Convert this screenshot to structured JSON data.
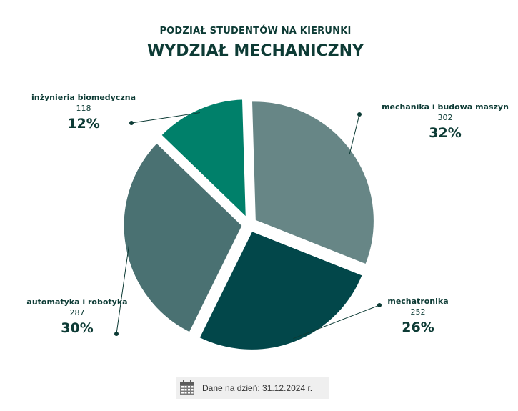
{
  "title": {
    "line1": "PODZIAŁ STUDENTÓW NA KIERUNKI",
    "line2": "WYDZIAŁ MECHANICZNY"
  },
  "footer": {
    "text": "Dane na dzień: 31.12.2024 r.",
    "icon": "calendar-icon"
  },
  "chart_data": {
    "type": "pie",
    "title": "PODZIAŁ STUDENTÓW NA KIERUNKI",
    "subtitle": "WYDZIAŁ MECHANICZNY",
    "slices": [
      {
        "name": "mechanika i budowa maszyn",
        "count": "302",
        "value": 302,
        "pct": "32%",
        "color": "#678686"
      },
      {
        "name": "mechatronika",
        "count": "252",
        "value": 252,
        "pct": "26%",
        "color": "#02474a"
      },
      {
        "name": "automatyka i robotyka",
        "count": "287",
        "value": 287,
        "pct": "30%",
        "color": "#4a7172"
      },
      {
        "name": "inżynieria biomedyczna",
        "count": "118",
        "value": 118,
        "pct": "12%",
        "color": "#00806a"
      }
    ],
    "legend": "none",
    "exploded": true
  }
}
